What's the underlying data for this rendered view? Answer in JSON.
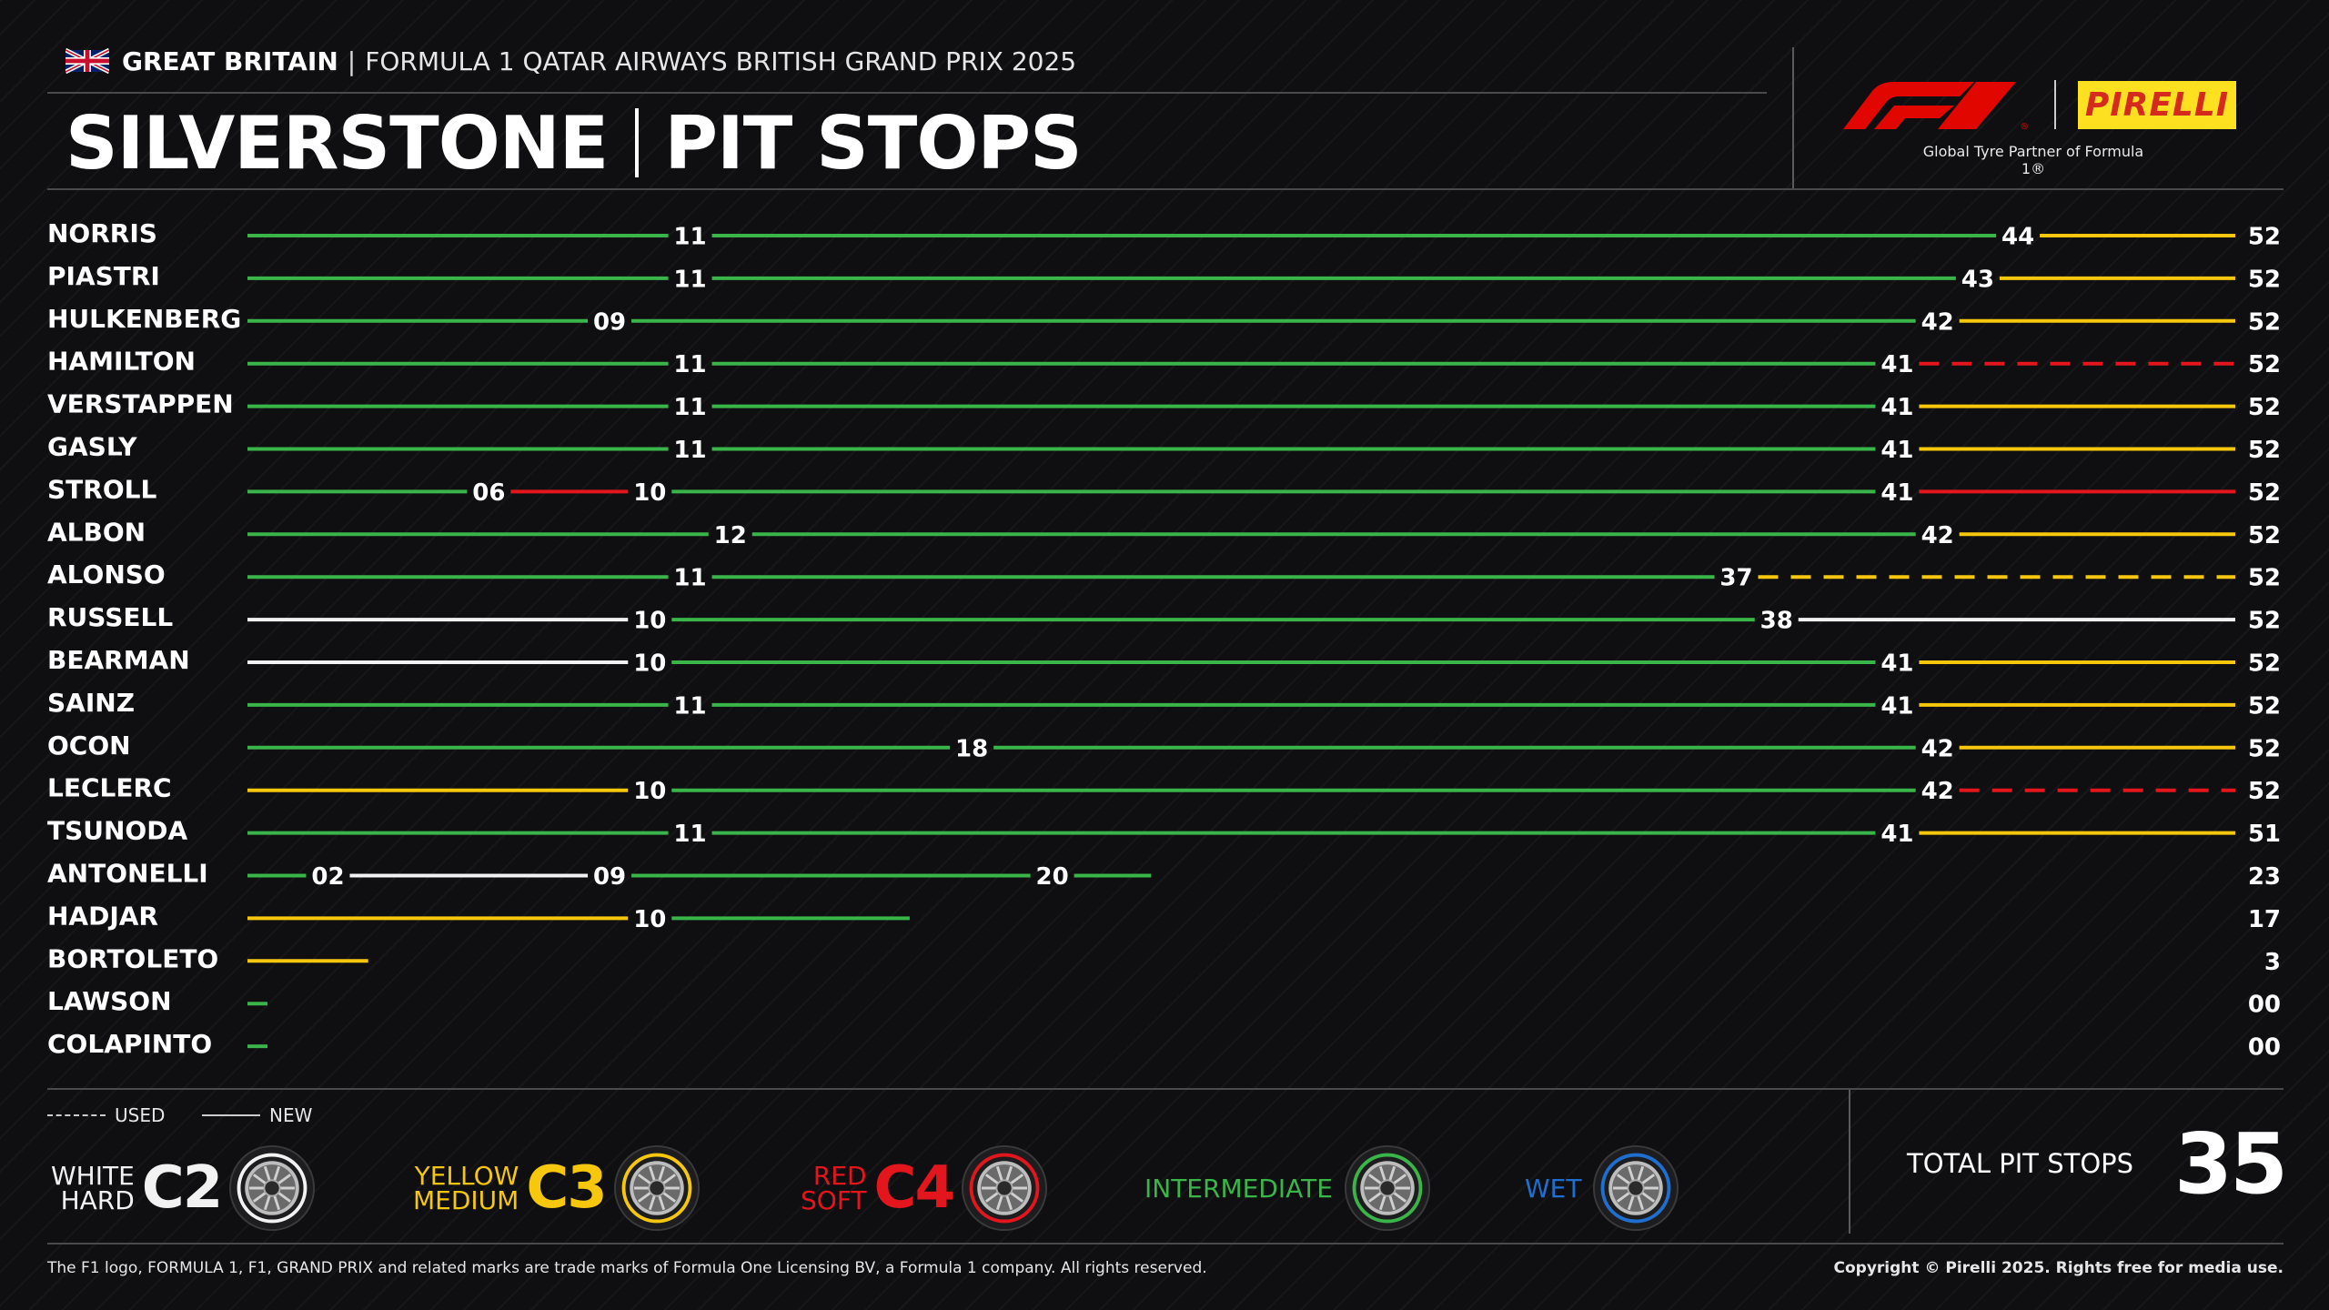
{
  "header": {
    "country": "GREAT BRITAIN",
    "separator": "|",
    "event": "FORMULA 1 QATAR AIRWAYS BRITISH GRAND PRIX 2025",
    "title_circuit": "SILVERSTONE",
    "title_topic": "PIT STOPS",
    "partner_text": "Global Tyre Partner of Formula 1®",
    "pirelli_label": "PIRELLI"
  },
  "colors": {
    "hard": "#f2f2f2",
    "medium": "#f6c70d",
    "soft": "#e3161d",
    "intermediate": "#39b54a",
    "wet": "#1f6fd1"
  },
  "chart_data": {
    "type": "bar",
    "title": "SILVERSTONE | PIT STOPS",
    "x_unit": "laps",
    "drivers": [
      {
        "name": "NORRIS",
        "finish": "52",
        "stints": [
          {
            "compound": "intermediate",
            "used": false,
            "end": "11"
          },
          {
            "compound": "intermediate",
            "used": false,
            "end": "44"
          },
          {
            "compound": "medium",
            "used": false,
            "end": "52"
          }
        ]
      },
      {
        "name": "PIASTRI",
        "finish": "52",
        "stints": [
          {
            "compound": "intermediate",
            "used": false,
            "end": "11"
          },
          {
            "compound": "intermediate",
            "used": false,
            "end": "43"
          },
          {
            "compound": "medium",
            "used": false,
            "end": "52"
          }
        ]
      },
      {
        "name": "HULKENBERG",
        "finish": "52",
        "stints": [
          {
            "compound": "intermediate",
            "used": false,
            "end": "09"
          },
          {
            "compound": "intermediate",
            "used": false,
            "end": "42"
          },
          {
            "compound": "medium",
            "used": false,
            "end": "52"
          }
        ]
      },
      {
        "name": "HAMILTON",
        "finish": "52",
        "stints": [
          {
            "compound": "intermediate",
            "used": false,
            "end": "11"
          },
          {
            "compound": "intermediate",
            "used": false,
            "end": "41"
          },
          {
            "compound": "soft",
            "used": true,
            "end": "52"
          }
        ]
      },
      {
        "name": "VERSTAPPEN",
        "finish": "52",
        "stints": [
          {
            "compound": "intermediate",
            "used": false,
            "end": "11"
          },
          {
            "compound": "intermediate",
            "used": false,
            "end": "41"
          },
          {
            "compound": "medium",
            "used": false,
            "end": "52"
          }
        ]
      },
      {
        "name": "GASLY",
        "finish": "52",
        "stints": [
          {
            "compound": "intermediate",
            "used": false,
            "end": "11"
          },
          {
            "compound": "intermediate",
            "used": false,
            "end": "41"
          },
          {
            "compound": "medium",
            "used": false,
            "end": "52"
          }
        ]
      },
      {
        "name": "STROLL",
        "finish": "52",
        "stints": [
          {
            "compound": "intermediate",
            "used": false,
            "end": "06"
          },
          {
            "compound": "soft",
            "used": false,
            "end": "10"
          },
          {
            "compound": "intermediate",
            "used": false,
            "end": "41"
          },
          {
            "compound": "soft",
            "used": false,
            "end": "52"
          }
        ]
      },
      {
        "name": "ALBON",
        "finish": "52",
        "stints": [
          {
            "compound": "intermediate",
            "used": false,
            "end": "12"
          },
          {
            "compound": "intermediate",
            "used": false,
            "end": "42"
          },
          {
            "compound": "medium",
            "used": false,
            "end": "52"
          }
        ]
      },
      {
        "name": "ALONSO",
        "finish": "52",
        "stints": [
          {
            "compound": "intermediate",
            "used": false,
            "end": "11"
          },
          {
            "compound": "intermediate",
            "used": false,
            "end": "37"
          },
          {
            "compound": "medium",
            "used": true,
            "end": "52"
          }
        ]
      },
      {
        "name": "RUSSELL",
        "finish": "52",
        "stints": [
          {
            "compound": "hard",
            "used": false,
            "end": "10"
          },
          {
            "compound": "intermediate",
            "used": false,
            "end": "38"
          },
          {
            "compound": "hard",
            "used": false,
            "end": "52"
          }
        ]
      },
      {
        "name": "BEARMAN",
        "finish": "52",
        "stints": [
          {
            "compound": "hard",
            "used": false,
            "end": "10"
          },
          {
            "compound": "intermediate",
            "used": false,
            "end": "41"
          },
          {
            "compound": "medium",
            "used": false,
            "end": "52"
          }
        ]
      },
      {
        "name": "SAINZ",
        "finish": "52",
        "stints": [
          {
            "compound": "intermediate",
            "used": false,
            "end": "11"
          },
          {
            "compound": "intermediate",
            "used": false,
            "end": "41"
          },
          {
            "compound": "medium",
            "used": false,
            "end": "52"
          }
        ]
      },
      {
        "name": "OCON",
        "finish": "52",
        "stints": [
          {
            "compound": "intermediate",
            "used": false,
            "end": "18"
          },
          {
            "compound": "intermediate",
            "used": false,
            "end": "42"
          },
          {
            "compound": "medium",
            "used": false,
            "end": "52"
          }
        ]
      },
      {
        "name": "LECLERC",
        "finish": "52",
        "stints": [
          {
            "compound": "medium",
            "used": false,
            "end": "10"
          },
          {
            "compound": "intermediate",
            "used": false,
            "end": "42"
          },
          {
            "compound": "soft",
            "used": true,
            "end": "52"
          }
        ]
      },
      {
        "name": "TSUNODA",
        "finish": "51",
        "stints": [
          {
            "compound": "intermediate",
            "used": false,
            "end": "11"
          },
          {
            "compound": "intermediate",
            "used": false,
            "end": "41"
          },
          {
            "compound": "medium",
            "used": false,
            "end": "51"
          }
        ]
      },
      {
        "name": "ANTONELLI",
        "finish": "23",
        "stints": [
          {
            "compound": "intermediate",
            "used": false,
            "end": "02"
          },
          {
            "compound": "hard",
            "used": false,
            "end": "09"
          },
          {
            "compound": "intermediate",
            "used": false,
            "end": "20"
          },
          {
            "compound": "intermediate",
            "used": false,
            "end": "23"
          }
        ]
      },
      {
        "name": "HADJAR",
        "finish": "17",
        "stints": [
          {
            "compound": "medium",
            "used": false,
            "end": "10"
          },
          {
            "compound": "intermediate",
            "used": false,
            "end": "17"
          }
        ]
      },
      {
        "name": "BORTOLETO",
        "finish": "3",
        "stints": [
          {
            "compound": "medium",
            "used": false,
            "end": "3"
          }
        ]
      },
      {
        "name": "LAWSON",
        "finish": "00",
        "stints": [
          {
            "compound": "intermediate",
            "used": false,
            "end": "00"
          }
        ]
      },
      {
        "name": "COLAPINTO",
        "finish": "00",
        "stints": [
          {
            "compound": "intermediate",
            "used": false,
            "end": "00"
          }
        ]
      }
    ]
  },
  "legend": {
    "used": "USED",
    "new": "NEW",
    "compounds": [
      {
        "key": "hard",
        "line1": "WHITE",
        "line2": "HARD",
        "code": "C2",
        "color": "#f2f2f2"
      },
      {
        "key": "medium",
        "line1": "YELLOW",
        "line2": "MEDIUM",
        "code": "C3",
        "color": "#f6c70d"
      },
      {
        "key": "soft",
        "line1": "RED",
        "line2": "SOFT",
        "code": "C4",
        "color": "#e3161d"
      },
      {
        "key": "intermediate",
        "label": "INTERMEDIATE",
        "color": "#39b54a"
      },
      {
        "key": "wet",
        "label": "WET",
        "color": "#1f6fd1"
      }
    ]
  },
  "total": {
    "label": "TOTAL PIT STOPS",
    "value": "35"
  },
  "footer": {
    "left": "The F1 logo, FORMULA 1, F1, GRAND PRIX and related marks are trade marks of Formula One Licensing BV, a Formula 1 company. All rights reserved.",
    "right": "Copyright © Pirelli 2025. Rights free for media use."
  }
}
